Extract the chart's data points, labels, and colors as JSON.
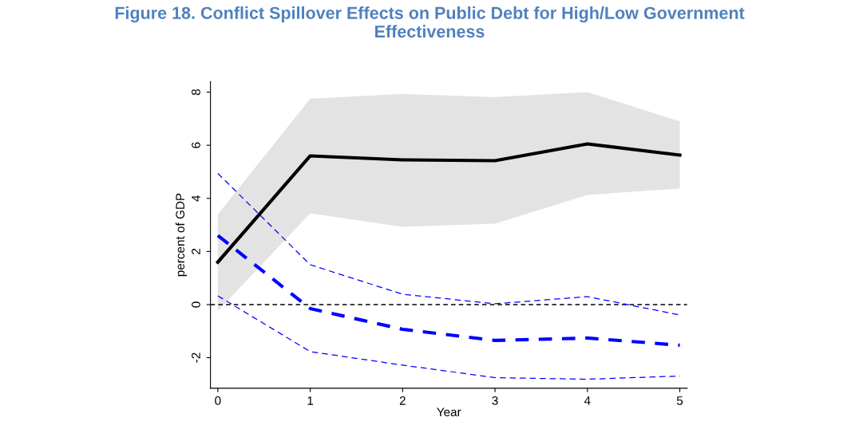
{
  "chart_data": {
    "type": "line",
    "title": "Figure 18. Conflict Spillover Effects on Public Debt for High/Low Government\nEffectiveness",
    "xlabel": "Year",
    "ylabel": "percent of GDP",
    "x": [
      0,
      1,
      2,
      3,
      4,
      5
    ],
    "series": [
      {
        "color": "#000000",
        "line_style": "solid",
        "values": [
          1.6,
          5.6,
          5.45,
          5.42,
          6.05,
          5.63
        ],
        "lower": [
          -0.24,
          3.44,
          2.93,
          3.05,
          4.13,
          4.37
        ],
        "upper": [
          3.4,
          7.75,
          7.93,
          7.81,
          8.0,
          6.9
        ]
      },
      {
        "color": "#0000ff",
        "line_style": "dashed",
        "values": [
          2.6,
          -0.15,
          -0.93,
          -1.35,
          -1.26,
          -1.53
        ]
      },
      {
        "color": "#0000ff",
        "line_style": "dashed",
        "values": [
          4.94,
          1.5,
          0.39,
          0.03,
          0.3,
          -0.39
        ]
      },
      {
        "color": "#0000ff",
        "line_style": "dashed",
        "values": [
          0.33,
          -1.77,
          -2.28,
          -2.75,
          -2.81,
          -2.69
        ]
      }
    ],
    "xlim": [
      -0.08,
      5.08
    ],
    "ylim": [
      -3.15,
      8.4
    ],
    "xticks": [
      0,
      1,
      2,
      3,
      4,
      5
    ],
    "yticks": [
      -2,
      0,
      2,
      4,
      6,
      8
    ],
    "ref_lines": [
      {
        "axis": "y",
        "value": 0,
        "color": "#000000",
        "line_style": "dashed"
      }
    ],
    "grid": false,
    "legend": false,
    "marker": "none"
  }
}
